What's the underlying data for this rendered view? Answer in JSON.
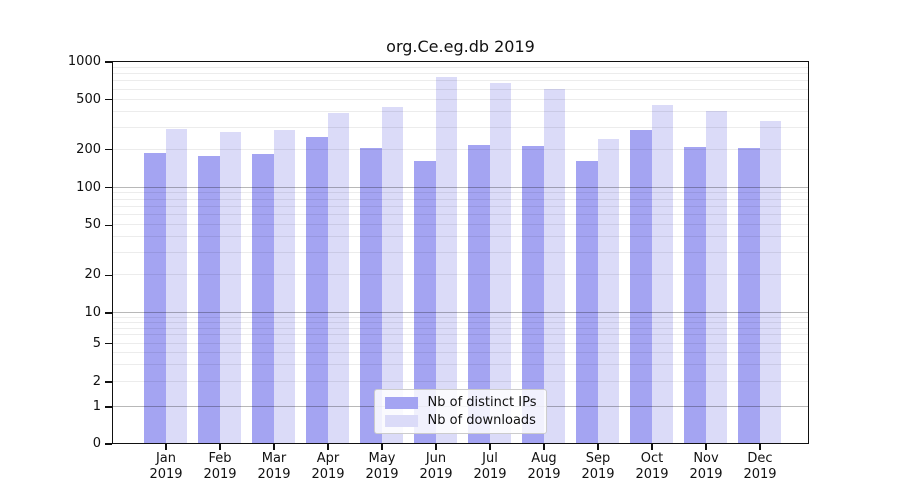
{
  "chart_data": {
    "type": "bar",
    "title": "org.Ce.eg.db 2019",
    "x": [
      "Jan",
      "Feb",
      "Mar",
      "Apr",
      "May",
      "Jun",
      "Jul",
      "Aug",
      "Sep",
      "Oct",
      "Nov",
      "Dec"
    ],
    "x_year": "2019",
    "series": [
      {
        "name": "Nb of distinct IPs",
        "color": "#a4a4f2",
        "values": [
          185,
          178,
          183,
          248,
          203,
          162,
          215,
          213,
          160,
          284,
          207,
          203
        ]
      },
      {
        "name": "Nb of downloads",
        "color": "#dbdbf8",
        "values": [
          290,
          272,
          285,
          387,
          434,
          750,
          670,
          600,
          240,
          448,
          403,
          336
        ]
      }
    ],
    "y_ticks": [
      "0",
      "1",
      "2",
      "5",
      "10",
      "20",
      "50",
      "100",
      "200",
      "500",
      "1000"
    ],
    "ylim": [
      0,
      1000
    ],
    "yscale": "log-like, linear-compressed below 10",
    "grid": "on, horizontal, drawn over bars",
    "legend_position": "lower center"
  }
}
